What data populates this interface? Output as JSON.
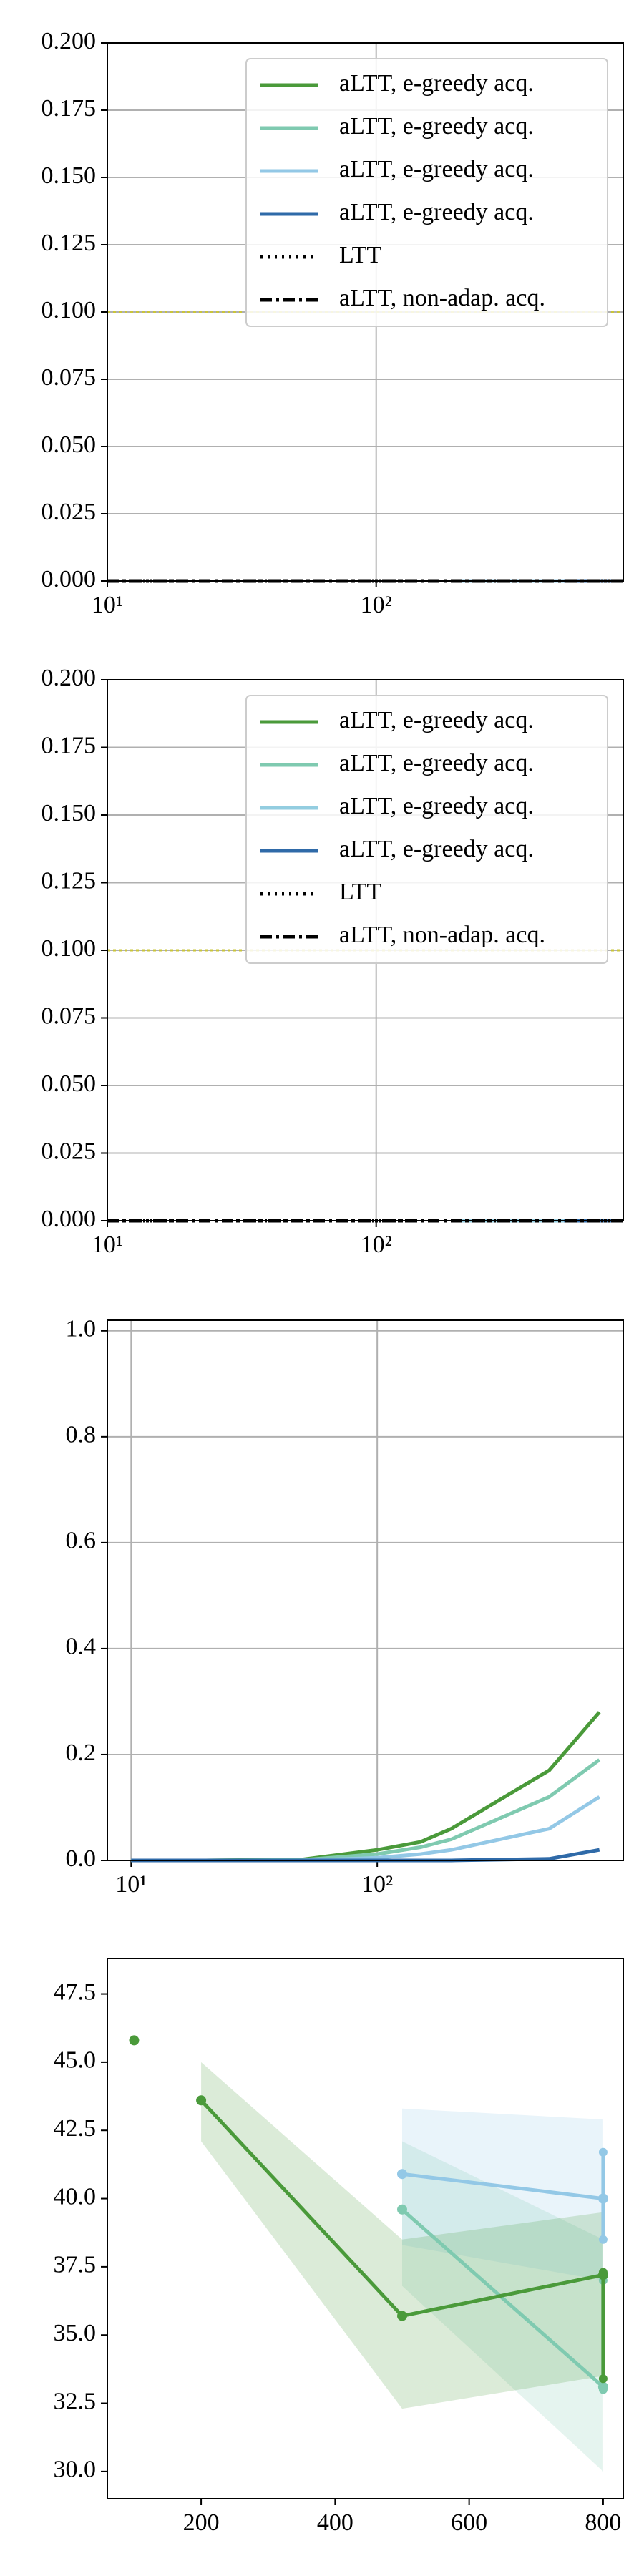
{
  "chart_data": [
    {
      "type": "line",
      "xscale": "log",
      "xlim": [
        10,
        830
      ],
      "xticks": [
        {
          "value": 10,
          "label": "10¹"
        },
        {
          "value": 100,
          "label": "10²"
        }
      ],
      "ylim": [
        0,
        0.2
      ],
      "yticks": [
        {
          "value": 0,
          "label": "0.000"
        },
        {
          "value": 0.025,
          "label": "0.025"
        },
        {
          "value": 0.05,
          "label": "0.050"
        },
        {
          "value": 0.075,
          "label": "0.075"
        },
        {
          "value": 0.1,
          "label": "0.100"
        },
        {
          "value": 0.125,
          "label": "0.125"
        },
        {
          "value": 0.15,
          "label": "0.150"
        },
        {
          "value": 0.175,
          "label": "0.175"
        },
        {
          "value": 0.2,
          "label": "0.200"
        }
      ],
      "grid": true,
      "legend": "upper right",
      "hlines": [
        {
          "value": 0.1,
          "color": "#c9c43a"
        }
      ],
      "series": [
        {
          "name": "aLTT, e-greedy acq.",
          "color": "#4a9a3a",
          "x": [
            200,
            500,
            800
          ],
          "values": [
            0,
            0,
            0
          ]
        },
        {
          "name": "aLTT, e-greedy acq.",
          "color": "#7fcab0",
          "x": [
            200,
            500,
            800
          ],
          "values": [
            0,
            0,
            0
          ]
        },
        {
          "name": "aLTT, e-greedy acq.",
          "color": "#93c8e6",
          "x": [
            200,
            500,
            800
          ],
          "values": [
            0,
            0,
            0
          ]
        },
        {
          "name": "aLTT, e-greedy acq.",
          "color": "#2f6aa8",
          "x": [
            500,
            800
          ],
          "values": [
            0,
            0
          ]
        },
        {
          "name": "LTT",
          "color": "#000000",
          "dash": "dotted",
          "x": [
            10,
            830
          ],
          "values": [
            0,
            0
          ]
        },
        {
          "name": "aLTT, non-adap. acq.",
          "color": "#000000",
          "dash": "dashdot",
          "x": [
            10,
            830
          ],
          "values": [
            0,
            0
          ]
        }
      ]
    },
    {
      "type": "line",
      "xscale": "log",
      "xlim": [
        10,
        830
      ],
      "xticks": [
        {
          "value": 10,
          "label": "10¹"
        },
        {
          "value": 100,
          "label": "10²"
        }
      ],
      "ylim": [
        0,
        0.2
      ],
      "yticks": [
        {
          "value": 0,
          "label": "0.000"
        },
        {
          "value": 0.025,
          "label": "0.025"
        },
        {
          "value": 0.05,
          "label": "0.050"
        },
        {
          "value": 0.075,
          "label": "0.075"
        },
        {
          "value": 0.1,
          "label": "0.100"
        },
        {
          "value": 0.125,
          "label": "0.125"
        },
        {
          "value": 0.15,
          "label": "0.150"
        },
        {
          "value": 0.175,
          "label": "0.175"
        },
        {
          "value": 0.2,
          "label": "0.200"
        }
      ],
      "grid": true,
      "legend": "upper right",
      "hlines": [
        {
          "value": 0.1,
          "color": "#c9c43a"
        }
      ],
      "series": [
        {
          "name": "aLTT, e-greedy acq.",
          "color": "#4a9a3a",
          "x": [
            200,
            500,
            800
          ],
          "values": [
            0,
            0,
            0
          ]
        },
        {
          "name": "aLTT, e-greedy acq.",
          "color": "#7fcab0",
          "x": [
            200,
            500,
            800
          ],
          "values": [
            0,
            0,
            0
          ]
        },
        {
          "name": "aLTT, e-greedy acq.",
          "color": "#93cde0",
          "x": [
            200,
            500,
            800
          ],
          "values": [
            0,
            0,
            0
          ]
        },
        {
          "name": "aLTT, e-greedy acq.",
          "color": "#2f6aa8",
          "x": [
            500,
            800
          ],
          "values": [
            0,
            0
          ]
        },
        {
          "name": "LTT",
          "color": "#000000",
          "dash": "dotted",
          "x": [
            10,
            830
          ],
          "values": [
            0,
            0
          ]
        },
        {
          "name": "aLTT, non-adap. acq.",
          "color": "#000000",
          "dash": "dashdot",
          "x": [
            10,
            830
          ],
          "values": [
            0,
            0
          ]
        }
      ]
    },
    {
      "type": "line",
      "xscale": "log",
      "xlim": [
        8,
        1000
      ],
      "xticks": [
        {
          "value": 10,
          "label": "10¹"
        },
        {
          "value": 100,
          "label": "10²"
        }
      ],
      "ylim": [
        0,
        1.02
      ],
      "yticks": [
        {
          "value": 0,
          "label": "0.0"
        },
        0.2,
        0.4,
        0.6,
        0.8,
        {
          "value": 1,
          "label": "1.0"
        }
      ],
      "grid": true,
      "series": [
        {
          "color": "#4a9a3a",
          "x": [
            10,
            20,
            50,
            100,
            150,
            200,
            500,
            800
          ],
          "values": [
            0,
            0,
            0.002,
            0.02,
            0.035,
            0.06,
            0.17,
            0.28
          ]
        },
        {
          "color": "#7fcab0",
          "x": [
            10,
            20,
            50,
            100,
            150,
            200,
            500,
            800
          ],
          "values": [
            0,
            0,
            0.001,
            0.012,
            0.025,
            0.04,
            0.12,
            0.19
          ]
        },
        {
          "color": "#93c8e6",
          "x": [
            10,
            20,
            50,
            100,
            150,
            200,
            500,
            800
          ],
          "values": [
            0,
            0,
            0,
            0.005,
            0.012,
            0.02,
            0.06,
            0.12
          ]
        },
        {
          "color": "#2f6aa8",
          "x": [
            10,
            20,
            50,
            100,
            150,
            200,
            500,
            800
          ],
          "values": [
            0,
            0,
            0,
            0,
            0,
            0,
            0.003,
            0.02
          ]
        }
      ]
    },
    {
      "type": "line",
      "xscale": "linear",
      "xlim": [
        60,
        830
      ],
      "xticks": [
        200,
        400,
        600,
        800
      ],
      "ylim": [
        29,
        48.8
      ],
      "yticks": [
        {
          "value": 30,
          "label": "30.0"
        },
        32.5,
        {
          "value": 35,
          "label": "35.0"
        },
        37.5,
        {
          "value": 40,
          "label": "40.0"
        },
        42.5,
        {
          "value": 45,
          "label": "45.0"
        },
        47.5
      ],
      "grid": false,
      "markers": true,
      "series": [
        {
          "color": "#93c8e6",
          "x": [
            500,
            800
          ],
          "values": [
            40.9,
            40.0
          ],
          "lower": [
            38.3,
            37.0
          ],
          "upper": [
            43.3,
            42.9
          ],
          "whisker_low": [
            null,
            38.5
          ],
          "whisker_high": [
            null,
            41.7
          ]
        },
        {
          "color": "#7fcab0",
          "x": [
            500,
            800
          ],
          "values": [
            39.6,
            33.1
          ],
          "lower": [
            36.8,
            30.0
          ],
          "upper": [
            42.1,
            38.5
          ],
          "whisker_low": [
            null,
            33.0
          ],
          "whisker_high": [
            null,
            37.0
          ]
        },
        {
          "color": "#4a9a3a",
          "x": [
            200,
            500,
            800
          ],
          "values": [
            43.6,
            35.7,
            37.2
          ],
          "lower": [
            42.1,
            32.3,
            33.5
          ],
          "upper": [
            45.0,
            38.5,
            39.5
          ],
          "whisker_low": [
            null,
            null,
            33.4
          ],
          "whisker_high": [
            null,
            null,
            37.3
          ]
        },
        {
          "color": "#4a9a3a",
          "x": [
            100
          ],
          "values": [
            45.8
          ]
        }
      ]
    }
  ]
}
